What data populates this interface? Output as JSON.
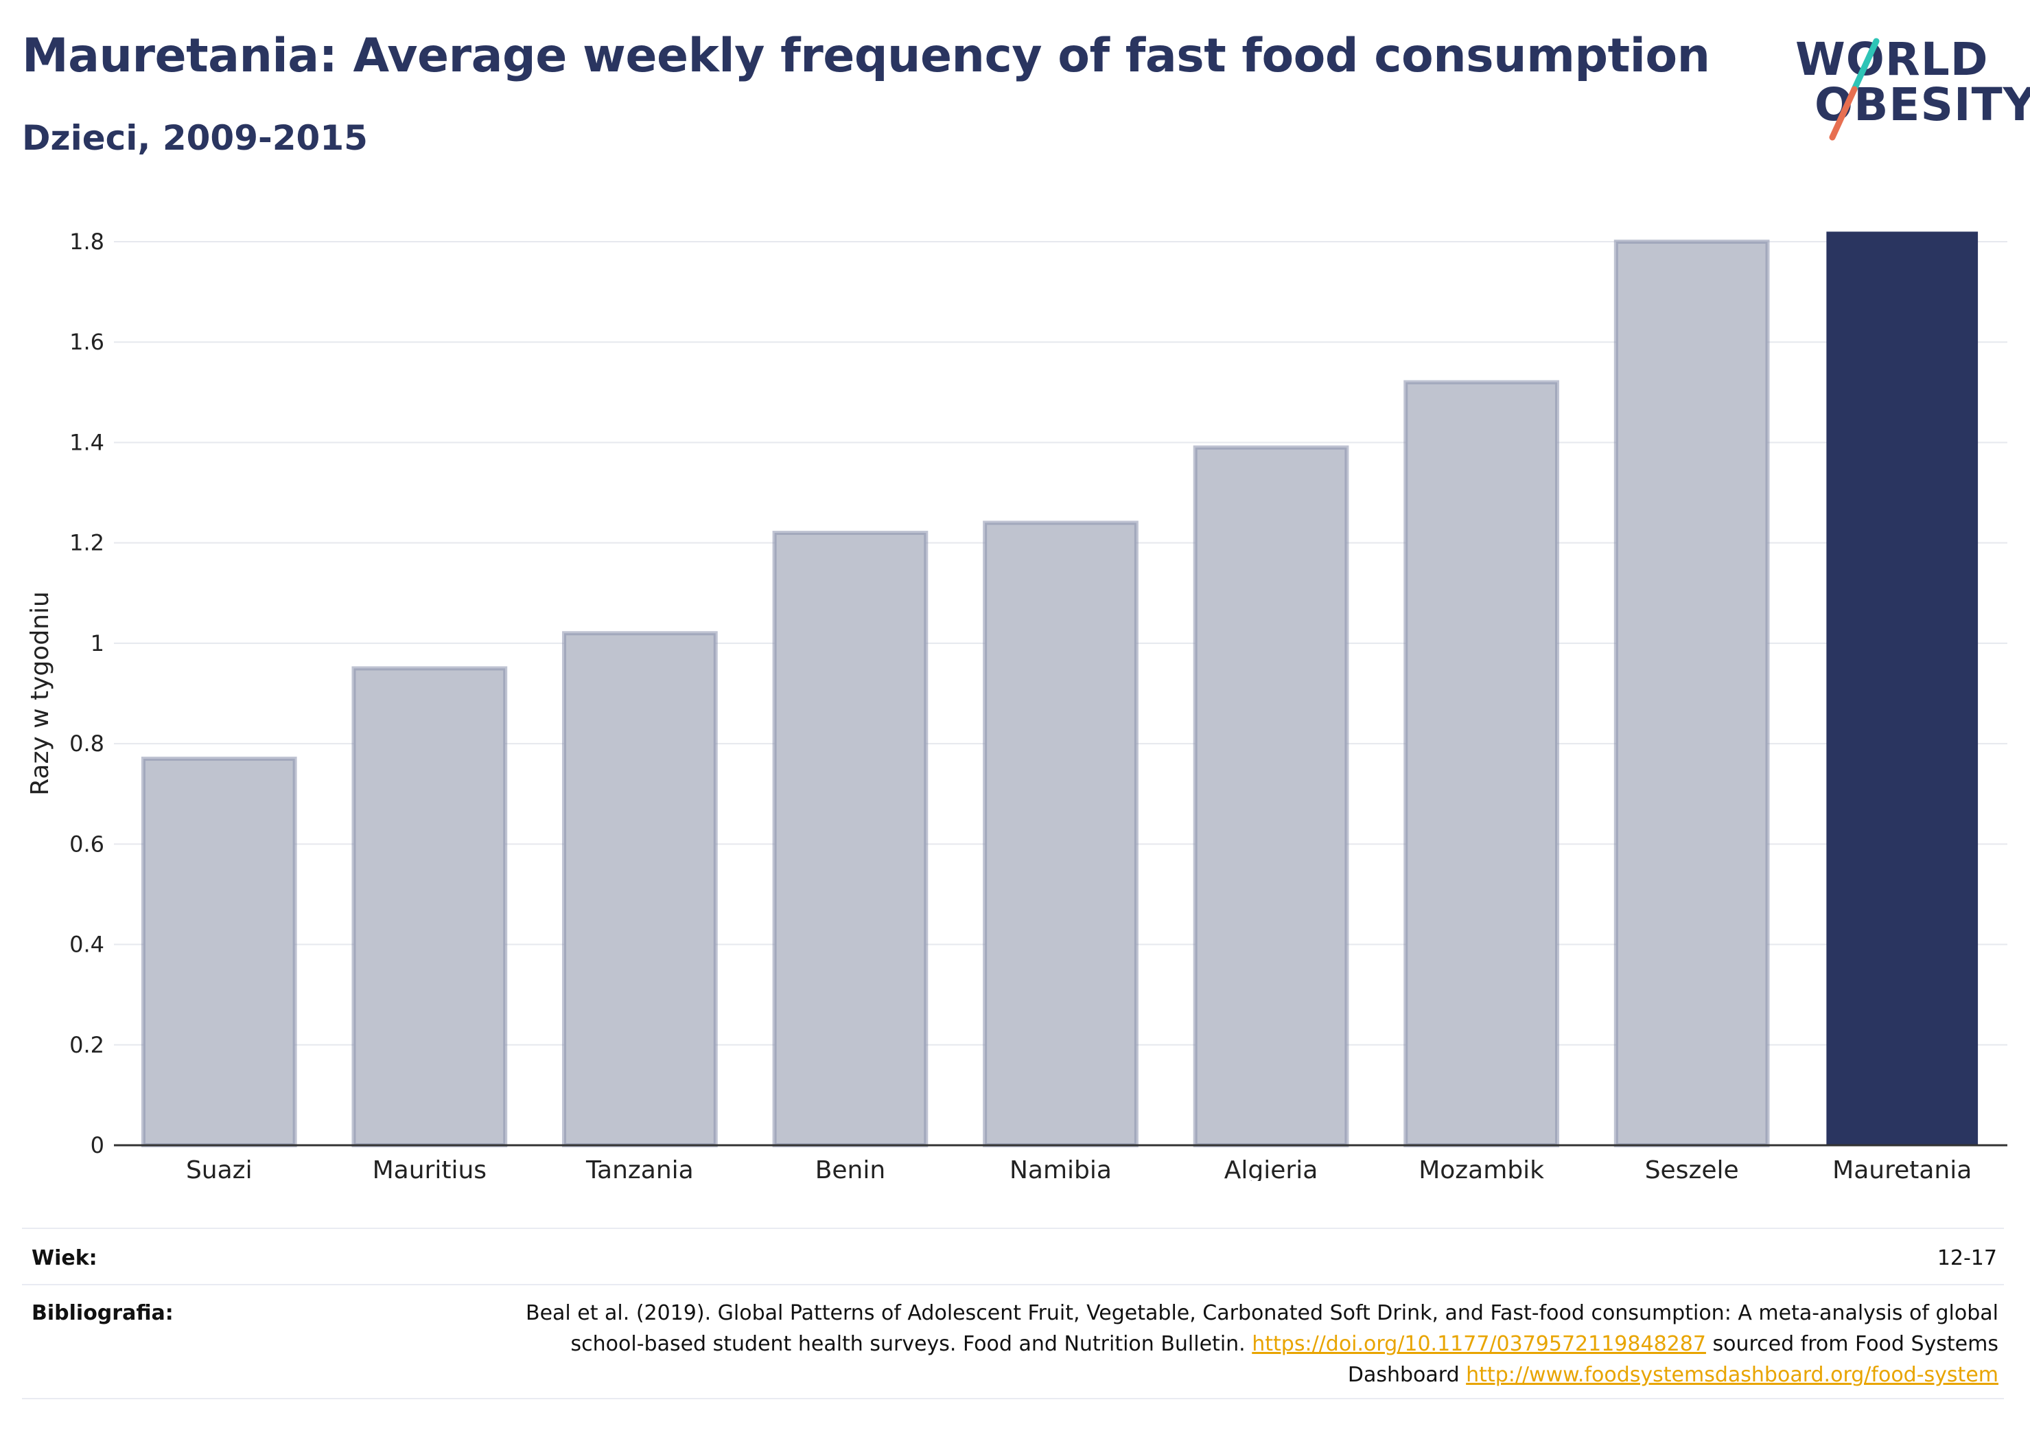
{
  "header": {
    "title": "Mauretania: Average weekly frequency of fast food consumption",
    "subtitle": "Dzieci, 2009-2015"
  },
  "logo": {
    "line1": "WORLD",
    "line2": "OBESITY",
    "accent_teal": "#2ec4b6",
    "accent_coral": "#e76f51"
  },
  "chart_data": {
    "type": "bar",
    "categories": [
      "Suazi",
      "Mauritius",
      "Tanzania",
      "Benin",
      "Namibia",
      "Algieria",
      "Mozambik",
      "Seszele",
      "Mauretania"
    ],
    "values": [
      0.77,
      0.95,
      1.02,
      1.22,
      1.24,
      1.39,
      1.52,
      1.8,
      1.82
    ],
    "highlight": "Mauretania",
    "ylabel": "Razy w tygodniu",
    "xlabel": "",
    "ylim": [
      0,
      1.8
    ],
    "yticks": [
      "0",
      "0.2",
      "0.4",
      "0.6",
      "0.8",
      "1",
      "1.2",
      "1.4",
      "1.6",
      "1.8"
    ],
    "grid": true,
    "colors": {
      "bar": "#bfc3cf",
      "bar_border": "#8b92ad",
      "highlight": "#2a3560"
    }
  },
  "meta": {
    "age_label": "Wiek:",
    "age_value": "12-17",
    "bib_label": "Bibliografia:",
    "bib_text1": "Beal et al. (2019). Global Patterns of Adolescent Fruit, Vegetable, Carbonated Soft Drink, and Fast-food consumption: A meta-analysis of global school-based student health surveys. Food and Nutrition Bulletin. ",
    "bib_link1": "https://doi.org/10.1177/0379572119848287",
    "bib_text2": " sourced from Food Systems Dashboard ",
    "bib_link2": "http://www.foodsystemsdashboard.org/food-system"
  }
}
